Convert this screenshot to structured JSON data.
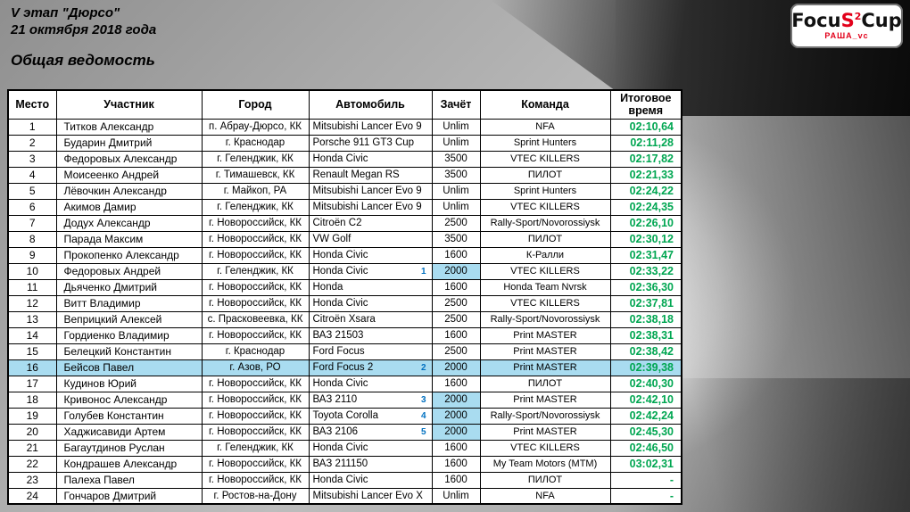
{
  "header": {
    "line1": "V этап \"Дюрсо\"",
    "line2": "21 октября 2018 года",
    "subtitle": "Общая ведомость"
  },
  "logo": {
    "text_black1": "Focu",
    "text_red": "S",
    "sup": "2",
    "text_black2": "Cup",
    "subtext": "РАША_vc"
  },
  "colors": {
    "time_green": "#00a651",
    "highlight_blue": "#a9dcf0",
    "class_pos_blue": "#0070c0",
    "logo_red": "#e2001a"
  },
  "table": {
    "columns": [
      "Место",
      "Участник",
      "Город",
      "Автомобиль",
      "Зачёт",
      "Команда",
      "Итоговое время"
    ],
    "rows": [
      {
        "place": "1",
        "name": "Титков Александр",
        "city": "п. Абрау-Дюрсо, КК",
        "car": "Mitsubishi Lancer Evo 9",
        "class_pos": "",
        "zachet": "Unlim",
        "team": "NFA",
        "time": "02:10,64",
        "highlight_row": false,
        "highlight_class": false
      },
      {
        "place": "2",
        "name": "Бударин Дмитрий",
        "city": "г. Краснодар",
        "car": "Porsche 911 GT3 Cup",
        "class_pos": "",
        "zachet": "Unlim",
        "team": "Sprint Hunters",
        "time": "02:11,28",
        "highlight_row": false,
        "highlight_class": false
      },
      {
        "place": "3",
        "name": "Федоровых Александр",
        "city": "г. Геленджик, КК",
        "car": "Honda Civic",
        "class_pos": "",
        "zachet": "3500",
        "team": "VTEC KILLERS",
        "time": "02:17,82",
        "highlight_row": false,
        "highlight_class": false
      },
      {
        "place": "4",
        "name": "Моисеенко Андрей",
        "city": "г. Тимашевск, КК",
        "car": "Renault Megan RS",
        "class_pos": "",
        "zachet": "3500",
        "team": "ПИЛОТ",
        "time": "02:21,33",
        "highlight_row": false,
        "highlight_class": false
      },
      {
        "place": "5",
        "name": "Лёвочкин Александр",
        "city": "г. Майкоп, РА",
        "car": "Mitsubishi Lancer Evo 9",
        "class_pos": "",
        "zachet": "Unlim",
        "team": "Sprint Hunters",
        "time": "02:24,22",
        "highlight_row": false,
        "highlight_class": false
      },
      {
        "place": "6",
        "name": "Акимов Дамир",
        "city": "г. Геленджик, КК",
        "car": "Mitsubishi Lancer Evo 9",
        "class_pos": "",
        "zachet": "Unlim",
        "team": "VTEC KILLERS",
        "time": "02:24,35",
        "highlight_row": false,
        "highlight_class": false
      },
      {
        "place": "7",
        "name": "Додух Александр",
        "city": "г. Новороссийск, КК",
        "car": "Citroën C2",
        "class_pos": "",
        "zachet": "2500",
        "team": "Rally-Sport/Novorossiysk",
        "time": "02:26,10",
        "highlight_row": false,
        "highlight_class": false
      },
      {
        "place": "8",
        "name": "Парада Максим",
        "city": "г. Новороссийск, КК",
        "car": "VW Golf",
        "class_pos": "",
        "zachet": "3500",
        "team": "ПИЛОТ",
        "time": "02:30,12",
        "highlight_row": false,
        "highlight_class": false
      },
      {
        "place": "9",
        "name": "Прокопенко Александр",
        "city": "г. Новороссийск, КК",
        "car": "Honda Civic",
        "class_pos": "",
        "zachet": "1600",
        "team": "К-Ралли",
        "time": "02:31,47",
        "highlight_row": false,
        "highlight_class": false
      },
      {
        "place": "10",
        "name": "Федоровых Андрей",
        "city": "г. Геленджик, КК",
        "car": "Honda Civic",
        "class_pos": "1",
        "zachet": "2000",
        "team": "VTEC KILLERS",
        "time": "02:33,22",
        "highlight_row": false,
        "highlight_class": true
      },
      {
        "place": "11",
        "name": "Дьяченко Дмитрий",
        "city": "г. Новороссийск, КК",
        "car": "Honda",
        "class_pos": "",
        "zachet": "1600",
        "team": "Honda Team Nvrsk",
        "time": "02:36,30",
        "highlight_row": false,
        "highlight_class": false
      },
      {
        "place": "12",
        "name": "Витт Владимир",
        "city": "г. Новороссийск, КК",
        "car": "Honda Civic",
        "class_pos": "",
        "zachet": "2500",
        "team": "VTEC KILLERS",
        "time": "02:37,81",
        "highlight_row": false,
        "highlight_class": false
      },
      {
        "place": "13",
        "name": "Веприцкий Алексей",
        "city": "с. Прасковеевка, КК",
        "car": "Citroën Xsara",
        "class_pos": "",
        "zachet": "2500",
        "team": "Rally-Sport/Novorossiysk",
        "time": "02:38,18",
        "highlight_row": false,
        "highlight_class": false
      },
      {
        "place": "14",
        "name": "Гордиенко Владимир",
        "city": "г. Новороссийск, КК",
        "car": "ВАЗ 21503",
        "class_pos": "",
        "zachet": "1600",
        "team": "Print MASTER",
        "time": "02:38,31",
        "highlight_row": false,
        "highlight_class": false
      },
      {
        "place": "15",
        "name": "Белецкий Константин",
        "city": "г. Краснодар",
        "car": "Ford Focus",
        "class_pos": "",
        "zachet": "2500",
        "team": "Print MASTER",
        "time": "02:38,42",
        "highlight_row": false,
        "highlight_class": false
      },
      {
        "place": "16",
        "name": "Бейсов Павел",
        "city": "г. Азов, РО",
        "car": "Ford Focus 2",
        "class_pos": "2",
        "zachet": "2000",
        "team": "Print MASTER",
        "time": "02:39,38",
        "highlight_row": true,
        "highlight_class": true
      },
      {
        "place": "17",
        "name": "Кудинов Юрий",
        "city": "г. Новороссийск, КК",
        "car": "Honda Civic",
        "class_pos": "",
        "zachet": "1600",
        "team": "ПИЛОТ",
        "time": "02:40,30",
        "highlight_row": false,
        "highlight_class": false
      },
      {
        "place": "18",
        "name": "Кривонос Александр",
        "city": "г. Новороссийск, КК",
        "car": "ВАЗ 2110",
        "class_pos": "3",
        "zachet": "2000",
        "team": "Print MASTER",
        "time": "02:42,10",
        "highlight_row": false,
        "highlight_class": true
      },
      {
        "place": "19",
        "name": "Голубев Константин",
        "city": "г. Новороссийск, КК",
        "car": "Toyota Corolla",
        "class_pos": "4",
        "zachet": "2000",
        "team": "Rally-Sport/Novorossiysk",
        "time": "02:42,24",
        "highlight_row": false,
        "highlight_class": true
      },
      {
        "place": "20",
        "name": "Хаджисавиди Артем",
        "city": "г. Новороссийск, КК",
        "car": "ВАЗ 2106",
        "class_pos": "5",
        "zachet": "2000",
        "team": "Print MASTER",
        "time": "02:45,30",
        "highlight_row": false,
        "highlight_class": true
      },
      {
        "place": "21",
        "name": "Багаутдинов Руслан",
        "city": "г. Геленджик, КК",
        "car": "Honda Civic",
        "class_pos": "",
        "zachet": "1600",
        "team": "VTEC KILLERS",
        "time": "02:46,50",
        "highlight_row": false,
        "highlight_class": false
      },
      {
        "place": "22",
        "name": "Кондрашев Александр",
        "city": "г. Новороссийск, КК",
        "car": "ВАЗ 211150",
        "class_pos": "",
        "zachet": "1600",
        "team": "My Team Motors (MTM)",
        "time": "03:02,31",
        "highlight_row": false,
        "highlight_class": false
      },
      {
        "place": "23",
        "name": "Палеха Павел",
        "city": "г. Новороссийск, КК",
        "car": "Honda Civic",
        "class_pos": "",
        "zachet": "1600",
        "team": "ПИЛОТ",
        "time": "-",
        "highlight_row": false,
        "highlight_class": false
      },
      {
        "place": "24",
        "name": "Гончаров Дмитрий",
        "city": "г. Ростов-на-Дону",
        "car": "Mitsubishi Lancer Evo X",
        "class_pos": "",
        "zachet": "Unlim",
        "team": "NFA",
        "time": "-",
        "highlight_row": false,
        "highlight_class": false
      }
    ]
  }
}
